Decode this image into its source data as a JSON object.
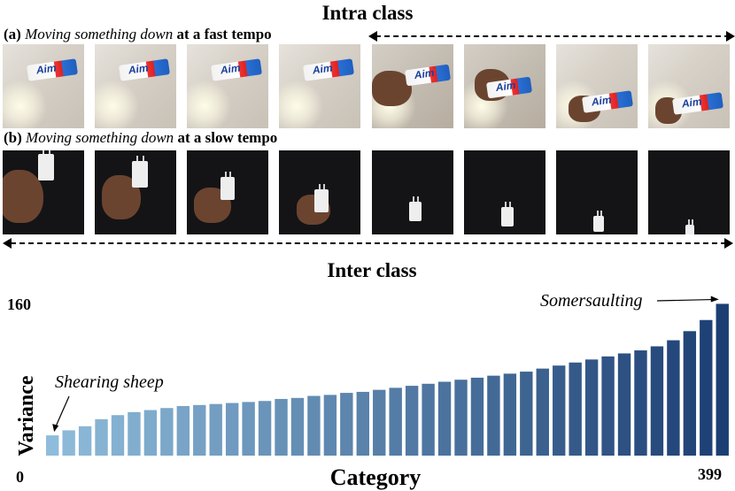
{
  "top_title": "Intra class",
  "row_a": {
    "letter": "(a)",
    "action": "Moving something down",
    "suffix": "at a fast tempo"
  },
  "row_b": {
    "letter": "(b)",
    "action": "Moving something down",
    "suffix": "at a slow tempo"
  },
  "tube_brand": "Aim",
  "inter_title": "Inter class",
  "chart_data": {
    "type": "bar",
    "title": "Inter class",
    "xlabel": "Category",
    "ylabel": "Variance",
    "y_tick_top": "160",
    "x_tick_left": "0",
    "x_tick_right": "399",
    "ylim": [
      0,
      160
    ],
    "bar_color_start": "#8fbcdb",
    "bar_color_end": "#1c3f73",
    "values": [
      20,
      25,
      29,
      36,
      40,
      43,
      45,
      47,
      49,
      50,
      51,
      52,
      53,
      54,
      56,
      57,
      59,
      60,
      62,
      63,
      65,
      67,
      69,
      71,
      73,
      75,
      77,
      79,
      81,
      83,
      86,
      89,
      92,
      95,
      98,
      101,
      104,
      108,
      114,
      123,
      134,
      150
    ],
    "annotations": [
      {
        "text": "Shearing sheep",
        "bar_index": 0
      },
      {
        "text": "Somersaulting",
        "bar_index": 41
      }
    ]
  }
}
